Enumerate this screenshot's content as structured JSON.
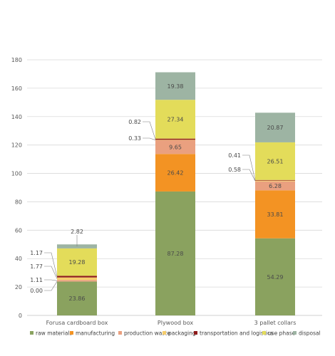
{
  "chart_data": {
    "type": "bar",
    "stacked": true,
    "categories": [
      "Forusa cardboard box",
      "Plywood box",
      "3 pallet collars"
    ],
    "ylim": [
      0,
      180
    ],
    "yticks": [
      0,
      20,
      40,
      60,
      80,
      100,
      120,
      140,
      160,
      180
    ],
    "grid": true,
    "legend_position": "bottom",
    "series": [
      {
        "name": "raw materials",
        "color": "#8aa25f",
        "values": [
          23.86,
          87.28,
          54.29
        ],
        "labels": [
          "23.86",
          "87.28",
          "54.29"
        ]
      },
      {
        "name": "manufacturing",
        "color": "#f39323",
        "values": [
          0.0,
          26.42,
          33.81
        ],
        "labels": [
          "0.00",
          "26.42",
          "33.81"
        ]
      },
      {
        "name": "production waste",
        "color": "#eaa07f",
        "values": [
          1.11,
          9.65,
          6.28
        ],
        "labels": [
          "1.11",
          "9.65",
          "6.28"
        ]
      },
      {
        "name": "packaging",
        "color": "#f6cd6b",
        "values": [
          1.77,
          0.33,
          0.58
        ],
        "labels": [
          "1.77",
          "0.33",
          "0.58"
        ]
      },
      {
        "name": "transportation and logistics",
        "color": "#8e1b1b",
        "values": [
          1.17,
          0.82,
          0.41
        ],
        "labels": [
          "1.17",
          "0.82",
          "0.41"
        ]
      },
      {
        "name": "use phase",
        "color": "#e3dc5a",
        "values": [
          19.28,
          27.34,
          26.51
        ],
        "labels": [
          "19.28",
          "27.34",
          "26.51"
        ]
      },
      {
        "name": "disposal",
        "color": "#9db4a3",
        "values": [
          2.82,
          19.38,
          20.87
        ],
        "labels": [
          "2.82",
          "19.38",
          "20.87"
        ]
      }
    ]
  }
}
